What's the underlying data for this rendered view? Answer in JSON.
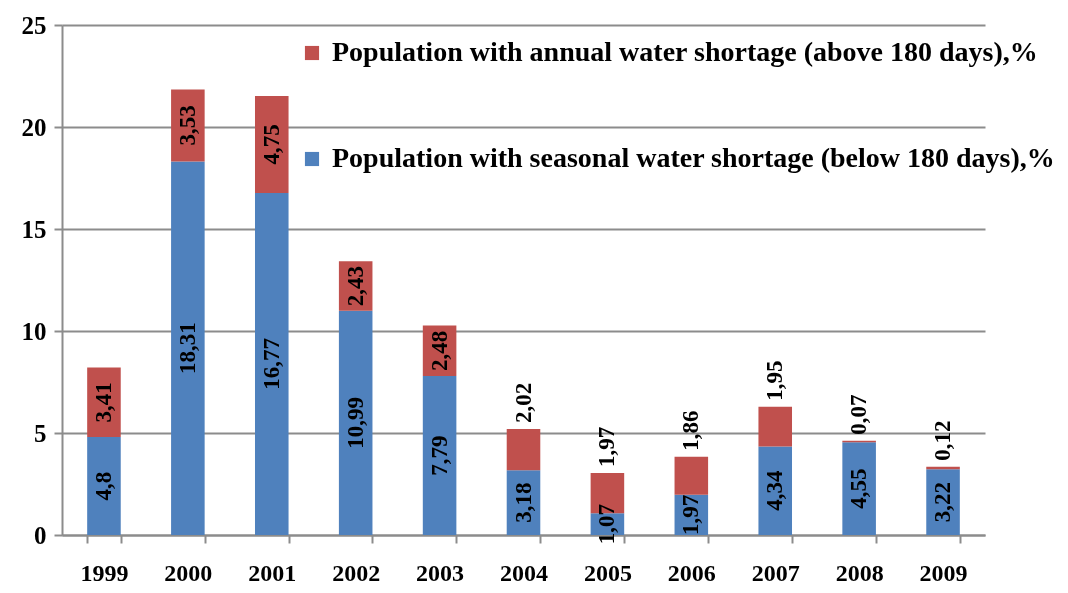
{
  "chart_data": {
    "type": "bar",
    "stacked": true,
    "categories": [
      "1999",
      "2000",
      "2001",
      "2002",
      "2003",
      "2004",
      "2005",
      "2006",
      "2007",
      "2008",
      "2009"
    ],
    "series": [
      {
        "name": "Population with seasonal water shortage (below 180 days),%",
        "color": "#4f81bd",
        "values": [
          4.8,
          18.31,
          16.77,
          10.99,
          7.79,
          3.18,
          1.07,
          1.97,
          4.34,
          4.55,
          3.22
        ],
        "value_labels": [
          "4,8",
          "18,31",
          "16,77",
          "10,99",
          "7,79",
          "3,18",
          "1,07",
          "1,97",
          "4,34",
          "4,55",
          "3,22"
        ]
      },
      {
        "name": "Population with annual water shortage (above 180 days),%",
        "color": "#c0504d",
        "values": [
          3.41,
          3.53,
          4.75,
          2.43,
          2.48,
          2.02,
          1.97,
          1.86,
          1.95,
          0.07,
          0.12
        ],
        "value_labels": [
          "3,41",
          "3,53",
          "4,75",
          "2,43",
          "2,48",
          "2,02",
          "1,97",
          "1,86",
          "1,95",
          "0,07",
          "0,12"
        ]
      }
    ],
    "ylim": [
      0,
      25
    ],
    "yticks": [
      0,
      5,
      10,
      15,
      20,
      25
    ],
    "grid": "y",
    "legend": "top right"
  }
}
